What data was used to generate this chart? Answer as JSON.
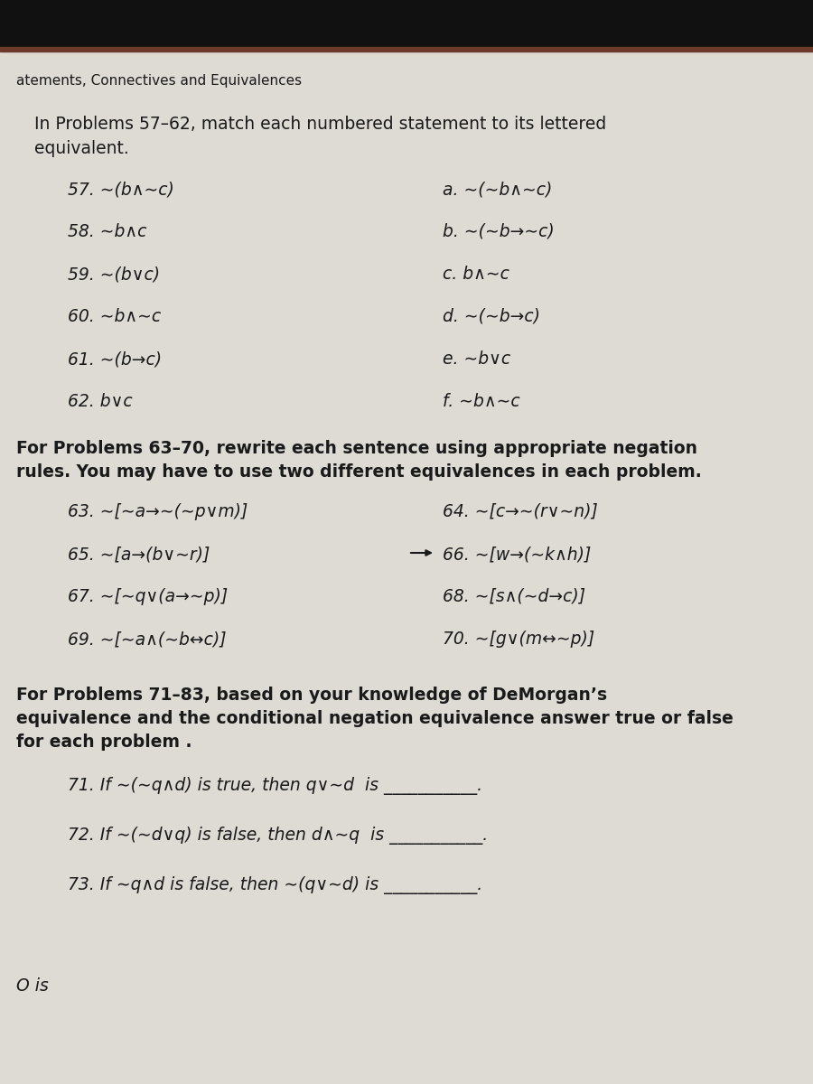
{
  "bg_color": "#dedad4",
  "text_color": "#1a1a1a",
  "dark_bar_top": "#1a1212",
  "header_text": "atements, Connectives and Equivalences",
  "intro_57": "In Problems 57–62, match each numbered statement to its lettered equivalent.",
  "intro_57_line2": "equivalent.",
  "problems_57_left": [
    "57. ∼(b∧∼c)",
    "58. ∼b∧c",
    "59. ∼(b∨c)",
    "60. ∼b∧∼c",
    "61. ∼(b→c)",
    "62. b∨c"
  ],
  "problems_57_right": [
    "a. ∼(∼b∧∼c)",
    "b. ∼(∼b→∼c)",
    "c. b∧∼c",
    "d. ∼(∼b→c)",
    "e. ∼b∨c",
    "f. ∼b∧∼c"
  ],
  "intro_63_line1": "For Problems 63–70, rewrite each sentence using appropriate negation",
  "intro_63_line2": "rules. You may have to use two different equivalences in each problem.",
  "problems_63_left": [
    "63. ∼[∼a→∼(∼p∨m)]",
    "65. ∼[a→(b∨∼r)]",
    "67. ∼[∼q∨(a→∼p)]",
    "69. ∼[∼a∧(∼b↔c)]"
  ],
  "problems_63_right": [
    "64. ∼[c→∼(r∨∼n)]",
    "66. ∼[w→(∼k∧h)]",
    "68. ∼[s∧(∼d→c)]",
    "70. ∼[g∨(m↔∼p)]"
  ],
  "intro_71_line1": "For Problems 71–83, based on your knowledge of DeMorgan’s",
  "intro_71_line2": "equivalence and the conditional negation equivalence answer true or false",
  "intro_71_line3": "for each problem .",
  "problems_71": [
    "71. If ∼(∼q∧d) is true, then q∨∼d  is ___________.",
    "72. If ∼(∼d∨q) is false, then d∧∼q  is ___________.",
    "73. If ∼q∧d is false, then ∼(q∨∼d) is ___________."
  ],
  "bottom_partial": "O is"
}
